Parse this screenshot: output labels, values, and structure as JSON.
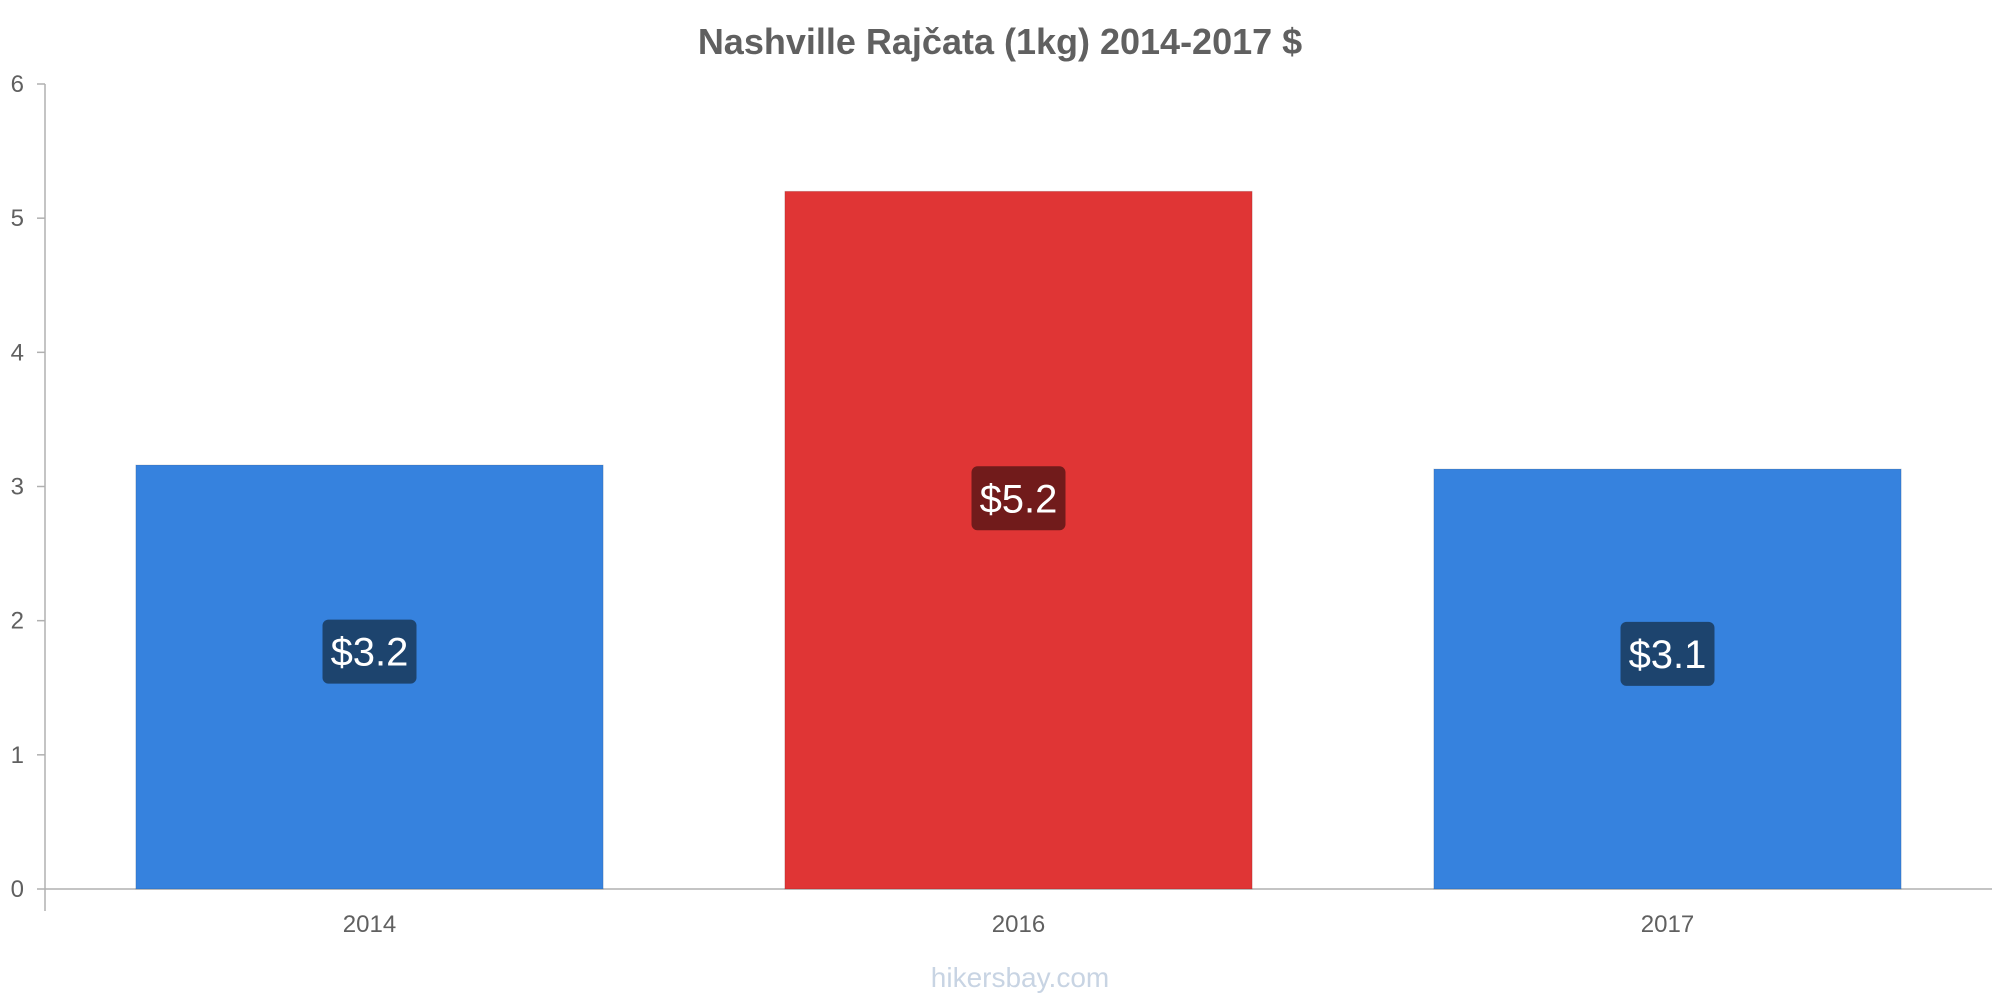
{
  "chart_data": {
    "type": "bar",
    "title": "Nashville Rajčata (1kg) 2014-2017 $",
    "categories": [
      "2014",
      "2016",
      "2017"
    ],
    "values": [
      3.16,
      5.2,
      3.13
    ],
    "value_labels": [
      "$3.2",
      "$5.2",
      "$3.1"
    ],
    "bar_colors": [
      "#3682de",
      "#e03535",
      "#3682de"
    ],
    "label_bg_colors": [
      "#1d446e",
      "#711b1b",
      "#1d446e"
    ],
    "ylim": [
      0,
      6
    ],
    "yticks": [
      "0",
      "1",
      "2",
      "3",
      "4",
      "5",
      "6"
    ],
    "xlabel": "",
    "ylabel": "",
    "grid": false,
    "legend": "none"
  },
  "watermark": "hikersbay.com",
  "colors": {
    "title": "#606060",
    "axis": "#b0b0b0",
    "tick_text": "#606060",
    "watermark": "#c8d4e3"
  }
}
